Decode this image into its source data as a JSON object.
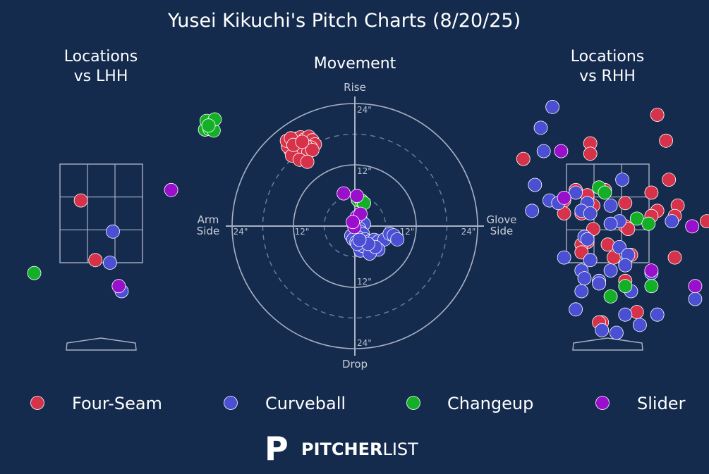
{
  "title": "Yusei Kikuchi's Pitch Charts (8/20/25)",
  "colors": {
    "background": "#152b4e",
    "Four-Seam": "#d6334a",
    "Curveball": "#4a4fd3",
    "Changeup": "#13b027",
    "Slider": "#9a0fcc",
    "lines": "#a9b1c3"
  },
  "legend": [
    "Four-Seam",
    "Curveball",
    "Changeup",
    "Slider"
  ],
  "brand": {
    "mark": "P",
    "bold": "PITCHER",
    "light": "LIST"
  },
  "chart_data": [
    {
      "type": "scatter",
      "title": "Locations\nvs LHH",
      "series": [
        {
          "name": "Four-Seam",
          "points": [
            [
              -0.35,
              2.8
            ],
            [
              -0.1,
              1.65
            ]
          ]
        },
        {
          "name": "Curveball",
          "points": [
            [
              0.2,
              2.2
            ],
            [
              0.15,
              1.6
            ],
            [
              0.35,
              1.05
            ]
          ]
        },
        {
          "name": "Changeup",
          "points": [
            [
              -1.15,
              1.4
            ]
          ]
        },
        {
          "name": "Slider",
          "points": [
            [
              1.2,
              3.0
            ],
            [
              0.3,
              1.15
            ]
          ]
        }
      ]
    },
    {
      "type": "scatter",
      "subtype": "polar-movement",
      "title": "Movement",
      "labels": {
        "top": "Rise",
        "bottom": "Drop",
        "left": "Arm\nSide",
        "right": "Glove\nSide"
      },
      "ring_labels": [
        "12\"",
        "24\""
      ],
      "series": [
        {
          "name": "Four-Seam",
          "points": [
            [
              -12.1,
              16.8
            ],
            [
              -11.4,
              17.1
            ],
            [
              -10.6,
              17.4
            ],
            [
              -9.8,
              17.0
            ],
            [
              -9.0,
              17.5
            ],
            [
              -8.3,
              16.8
            ],
            [
              -7.8,
              16.0
            ],
            [
              -8.6,
              15.4
            ],
            [
              -9.6,
              15.7
            ],
            [
              -10.9,
              15.6
            ],
            [
              -11.8,
              15.0
            ],
            [
              -12.6,
              14.9
            ],
            [
              -13.1,
              15.6
            ],
            [
              -13.3,
              16.7
            ],
            [
              -12.5,
              17.2
            ],
            [
              -11.2,
              14.3
            ],
            [
              -10.1,
              14.4
            ],
            [
              -9.1,
              14.5
            ],
            [
              -8.3,
              14.9
            ],
            [
              -12.3,
              13.8
            ],
            [
              -10.8,
              13.0
            ],
            [
              -9.3,
              12.6
            ],
            [
              -12.0,
              15.9
            ],
            [
              -10.3,
              16.5
            ]
          ]
        },
        {
          "name": "Curveball",
          "points": [
            [
              1.2,
              1.1
            ],
            [
              1.8,
              0.4
            ],
            [
              0.9,
              -0.5
            ],
            [
              1.0,
              -1.1
            ],
            [
              1.6,
              -1.6
            ],
            [
              0.6,
              -2.2
            ],
            [
              -0.7,
              -1.9
            ],
            [
              -0.3,
              -2.6
            ],
            [
              0.3,
              -3.1
            ],
            [
              1.2,
              -3.5
            ],
            [
              2.0,
              -2.6
            ],
            [
              2.9,
              -3.0
            ],
            [
              3.8,
              -2.7
            ],
            [
              4.6,
              -3.0
            ],
            [
              5.8,
              -2.6
            ],
            [
              6.8,
              -1.5
            ],
            [
              7.6,
              -1.8
            ],
            [
              8.3,
              -2.6
            ],
            [
              4.6,
              -4.6
            ],
            [
              3.1,
              -4.3
            ],
            [
              2.2,
              -4.6
            ],
            [
              1.1,
              -4.8
            ],
            [
              1.6,
              -3.9
            ],
            [
              0.5,
              -3.5
            ],
            [
              2.9,
              -5.4
            ],
            [
              4.0,
              -4.1
            ],
            [
              2.6,
              -3.5
            ],
            [
              0.9,
              -2.7
            ]
          ]
        },
        {
          "name": "Changeup",
          "points": [
            [
              -29.3,
              18.9
            ],
            [
              -28.4,
              19.0
            ],
            [
              -27.6,
              18.7
            ],
            [
              -29.0,
              20.6
            ],
            [
              -27.4,
              20.9
            ],
            [
              -28.6,
              19.7
            ],
            [
              0.6,
              5.1
            ],
            [
              1.3,
              5.0
            ],
            [
              1.8,
              4.5
            ]
          ]
        },
        {
          "name": "Slider",
          "points": [
            [
              -2.2,
              6.4
            ],
            [
              0.4,
              5.9
            ],
            [
              -0.1,
              -0.2
            ],
            [
              0.4,
              1.8
            ],
            [
              1.1,
              2.4
            ],
            [
              -0.4,
              0.8
            ]
          ]
        }
      ]
    },
    {
      "type": "scatter",
      "title": "Locations\nvs RHH",
      "series": [
        {
          "name": "Four-Seam",
          "points": [
            [
              0.85,
              4.45
            ],
            [
              1.0,
              3.95
            ],
            [
              -1.45,
              3.6
            ],
            [
              -0.3,
              3.9
            ],
            [
              -0.3,
              3.7
            ],
            [
              1.05,
              3.2
            ],
            [
              -0.55,
              3.0
            ],
            [
              -0.05,
              3.0
            ],
            [
              0.75,
              2.95
            ],
            [
              -0.35,
              2.9
            ],
            [
              -0.75,
              2.8
            ],
            [
              0.3,
              2.75
            ],
            [
              1.2,
              2.7
            ],
            [
              -0.25,
              2.7
            ],
            [
              0.85,
              2.6
            ],
            [
              -0.75,
              2.55
            ],
            [
              0.75,
              2.5
            ],
            [
              -0.45,
              2.55
            ],
            [
              1.15,
              2.5
            ],
            [
              1.7,
              2.4
            ],
            [
              0.3,
              2.3
            ],
            [
              0.35,
              2.25
            ],
            [
              -0.25,
              2.25
            ],
            [
              -0.35,
              2.0
            ],
            [
              -0.45,
              1.95
            ],
            [
              0.0,
              1.95
            ],
            [
              -0.45,
              1.8
            ],
            [
              0.1,
              1.7
            ],
            [
              1.15,
              1.7
            ],
            [
              0.4,
              1.75
            ],
            [
              0.3,
              1.25
            ],
            [
              0.5,
              0.65
            ],
            [
              -0.1,
              0.45
            ],
            [
              -0.15,
              0.45
            ]
          ]
        },
        {
          "name": "Curveball",
          "points": [
            [
              -0.95,
              4.6
            ],
            [
              -1.15,
              4.2
            ],
            [
              -1.1,
              3.75
            ],
            [
              -1.25,
              3.1
            ],
            [
              0.25,
              3.2
            ],
            [
              -0.55,
              2.95
            ],
            [
              -1.3,
              2.6
            ],
            [
              -1.0,
              2.8
            ],
            [
              -0.35,
              2.75
            ],
            [
              0.05,
              2.7
            ],
            [
              -0.85,
              2.75
            ],
            [
              -0.45,
              2.6
            ],
            [
              0.2,
              2.4
            ],
            [
              1.1,
              2.4
            ],
            [
              -0.3,
              2.55
            ],
            [
              0.05,
              2.35
            ],
            [
              -0.4,
              2.1
            ],
            [
              -0.35,
              2.05
            ],
            [
              0.2,
              1.9
            ],
            [
              -0.75,
              1.7
            ],
            [
              -0.3,
              1.65
            ],
            [
              0.35,
              1.75
            ],
            [
              0.3,
              1.55
            ],
            [
              0.05,
              1.45
            ],
            [
              0.75,
              1.4
            ],
            [
              -0.45,
              1.45
            ],
            [
              -0.4,
              1.3
            ],
            [
              -0.15,
              1.25
            ],
            [
              -0.15,
              1.2
            ],
            [
              0.4,
              1.05
            ],
            [
              -0.45,
              1.05
            ],
            [
              1.5,
              0.9
            ],
            [
              1.8,
              0.8
            ],
            [
              -0.55,
              0.7
            ],
            [
              0.3,
              0.6
            ],
            [
              0.85,
              0.6
            ],
            [
              -0.1,
              0.3
            ],
            [
              0.55,
              0.4
            ],
            [
              0.15,
              0.25
            ]
          ]
        },
        {
          "name": "Changeup",
          "points": [
            [
              -0.15,
              3.05
            ],
            [
              -0.05,
              2.95
            ],
            [
              0.5,
              2.45
            ],
            [
              0.7,
              2.35
            ],
            [
              0.3,
              1.15
            ],
            [
              0.75,
              1.15
            ],
            [
              0.05,
              0.95
            ]
          ]
        },
        {
          "name": "Slider",
          "points": [
            [
              -0.8,
              3.75
            ],
            [
              -0.75,
              2.85
            ],
            [
              0.75,
              1.45
            ],
            [
              1.45,
              2.3
            ],
            [
              1.5,
              1.15
            ]
          ]
        }
      ]
    }
  ]
}
